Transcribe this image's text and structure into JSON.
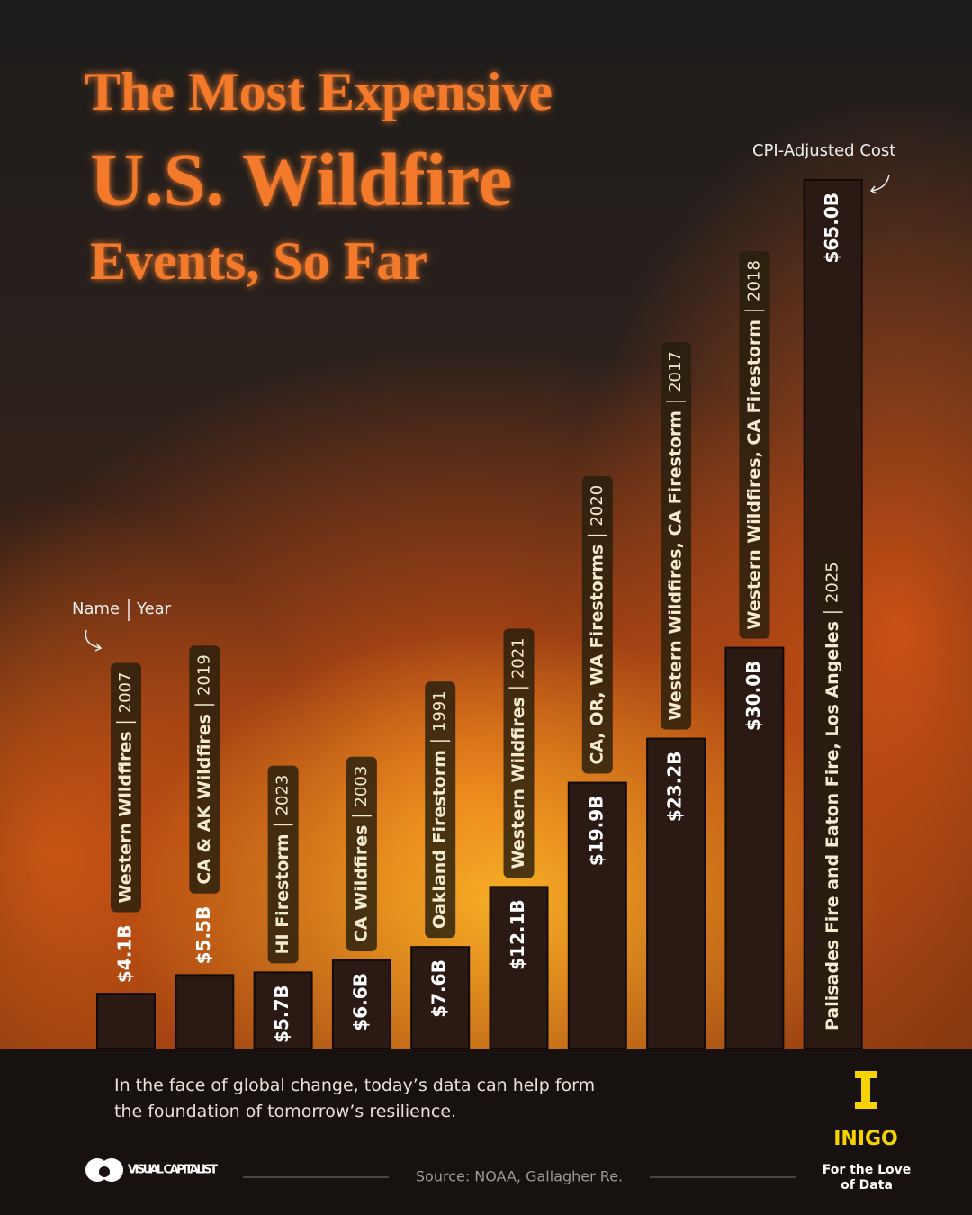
{
  "chart_data": {
    "type": "bar",
    "title_lines": [
      "The Most Expensive",
      "U.S. Wildfire",
      "Events, So Far"
    ],
    "categories": [
      "Western Wildfires",
      "CA & AK Wildfires",
      "HI Firestorm",
      "CA Wildfires",
      "Oakland Firestorm",
      "Western Wildfires",
      "CA, OR, WA Firestorms",
      "Western Wildfires, CA Firestorm",
      "Western Wildfires, CA Firestorm",
      "Palisades Fire and Eaton Fire, Los Angeles"
    ],
    "years": [
      "2007",
      "2019",
      "2023",
      "2003",
      "1991",
      "2021",
      "2020",
      "2017",
      "2018",
      "2025"
    ],
    "values": [
      4.1,
      5.5,
      5.7,
      6.6,
      7.6,
      12.1,
      19.9,
      23.2,
      30.0,
      65.0
    ],
    "value_labels": [
      "$4.1B",
      "$5.5B",
      "$5.7B",
      "$6.6B",
      "$7.6B",
      "$12.1B",
      "$19.9B",
      "$23.2B",
      "$30.0B",
      "$65.0B"
    ],
    "color": "#2b1a13",
    "value_annotation": "CPI-Adjusted Cost",
    "name_annotation": "Name",
    "year_annotation": "Year"
  },
  "footer": {
    "note": "In the face of global change, today’s data can help form the foundation of tomorrow’s resilience.",
    "source": "Source: NOAA, Gallagher Re.",
    "publisher": "VISUAL CAPITALIST",
    "sponsor": "INIGO",
    "sponsor_tagline": "For the Love of Data"
  }
}
